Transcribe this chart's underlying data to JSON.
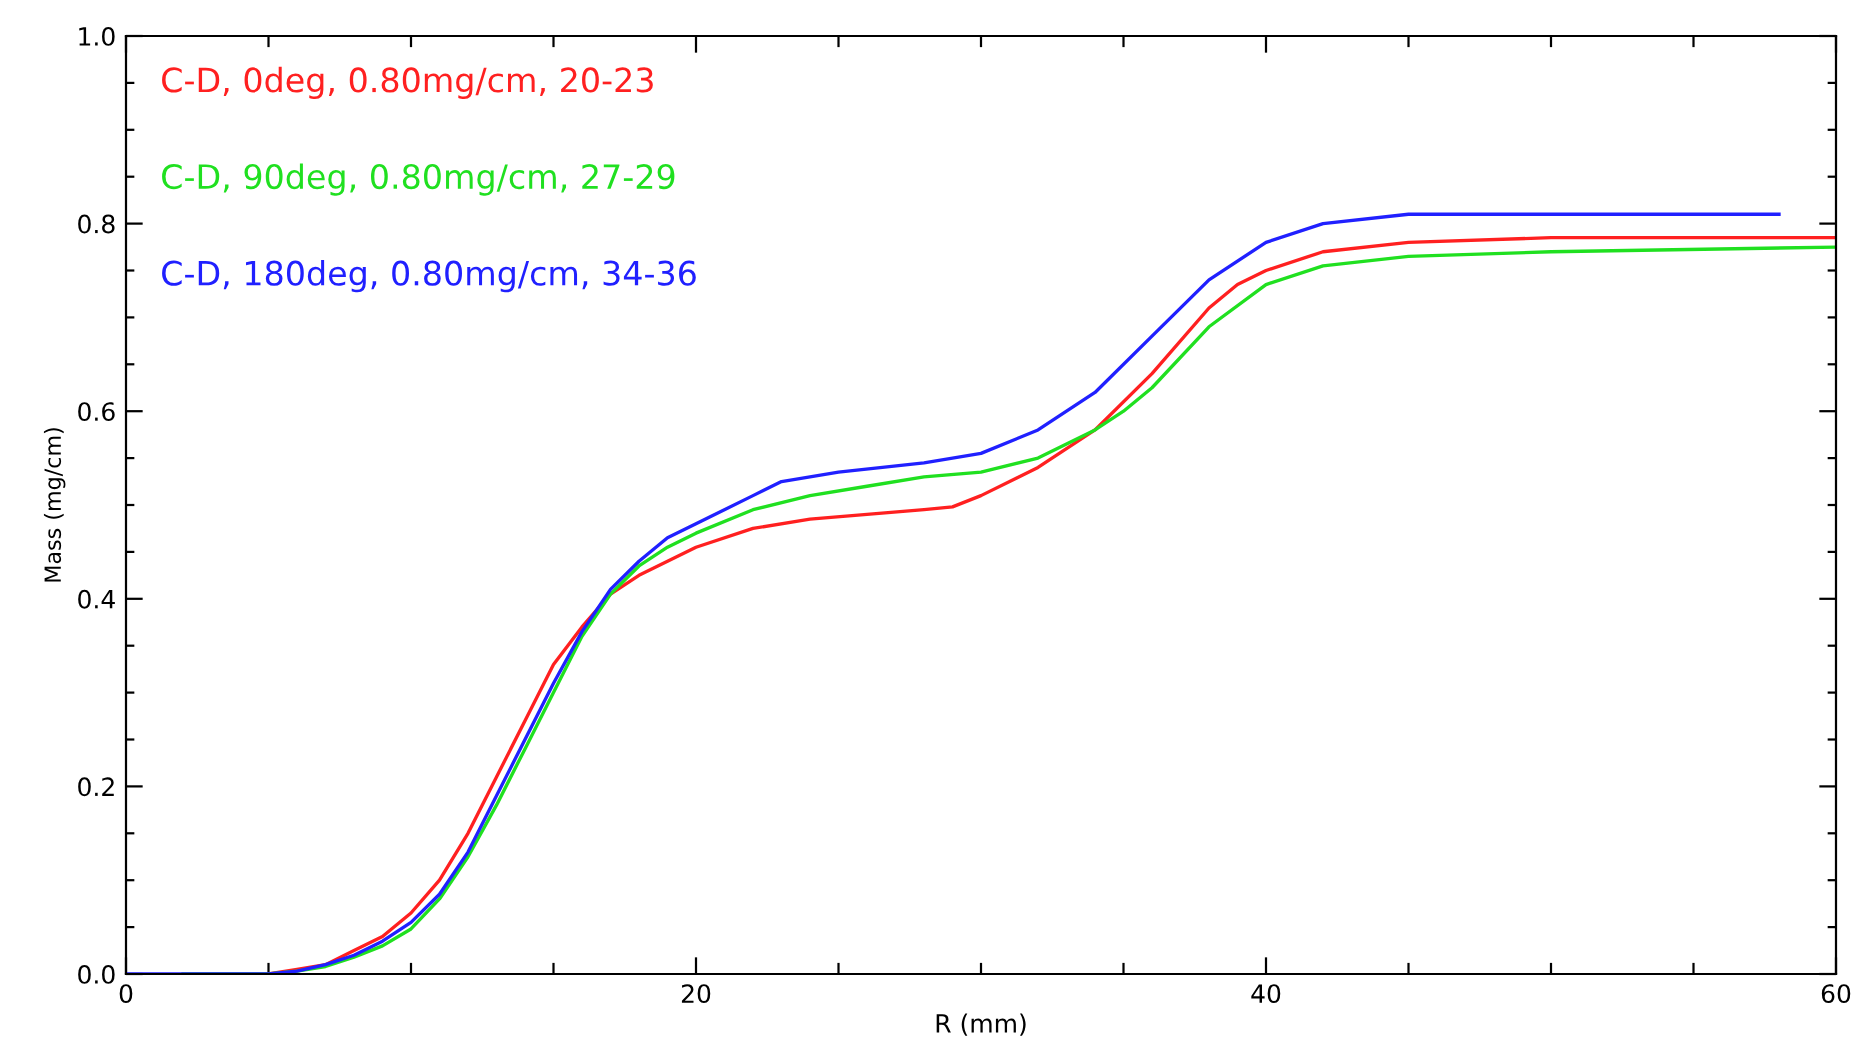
{
  "chart_data": {
    "type": "line",
    "xlabel": "R (mm)",
    "ylabel": "Mass (mg/cm)",
    "xlim": [
      0,
      60
    ],
    "ylim": [
      0,
      1.0
    ],
    "xticks": [
      0,
      {
        "value": 5,
        "label": null
      },
      {
        "value": 10,
        "label": null
      },
      {
        "value": 15,
        "label": null
      },
      20,
      {
        "value": 25,
        "label": null
      },
      {
        "value": 30,
        "label": null
      },
      {
        "value": 35,
        "label": null
      },
      40,
      {
        "value": 45,
        "label": null
      },
      {
        "value": 50,
        "label": null
      },
      {
        "value": 55,
        "label": null
      },
      60
    ],
    "yticks": [
      {
        "value": 0,
        "label": "0.0"
      },
      {
        "value": 0.05,
        "label": null
      },
      {
        "value": 0.1,
        "label": null
      },
      {
        "value": 0.15,
        "label": null
      },
      0.2,
      {
        "value": 0.25,
        "label": null
      },
      {
        "value": 0.3,
        "label": null
      },
      {
        "value": 0.35,
        "label": null
      },
      0.4,
      {
        "value": 0.45,
        "label": null
      },
      {
        "value": 0.5,
        "label": null
      },
      {
        "value": 0.55,
        "label": null
      },
      0.6,
      {
        "value": 0.65,
        "label": null
      },
      {
        "value": 0.7,
        "label": null
      },
      {
        "value": 0.75,
        "label": null
      },
      0.8,
      {
        "value": 0.85,
        "label": null
      },
      {
        "value": 0.9,
        "label": null
      },
      {
        "value": 0.95,
        "label": null
      },
      {
        "value": 1.0,
        "label": "1.0"
      }
    ],
    "grid": false,
    "legend": "top left",
    "marker": "none",
    "line_style": "solid",
    "series": [
      {
        "name": "C-D, 0deg, 0.80mg/cm, 20-23",
        "color": "#ff2020",
        "x": [
          5,
          6,
          7,
          8,
          9,
          10,
          11,
          12,
          13,
          14,
          15,
          16,
          17,
          18,
          19,
          20,
          22,
          24,
          26,
          28,
          29,
          30,
          32,
          34,
          36,
          38,
          39,
          40,
          42,
          45,
          50,
          60
        ],
        "values": [
          0,
          0.005,
          0.01,
          0.025,
          0.04,
          0.065,
          0.1,
          0.15,
          0.21,
          0.27,
          0.33,
          0.37,
          0.405,
          0.425,
          0.44,
          0.455,
          0.475,
          0.485,
          0.49,
          0.495,
          0.498,
          0.51,
          0.54,
          0.58,
          0.64,
          0.71,
          0.735,
          0.75,
          0.77,
          0.78,
          0.785,
          0.785
        ]
      },
      {
        "name": "C-D, 90deg, 0.80mg/cm, 27-29",
        "color": "#20e020",
        "x": [
          2,
          5,
          6,
          7,
          8,
          9,
          10,
          11,
          12,
          13,
          14,
          15,
          16,
          17,
          18,
          19,
          20,
          22,
          24,
          26,
          28,
          30,
          32,
          34,
          35,
          36,
          38,
          40,
          42,
          45,
          50,
          60
        ],
        "values": [
          0,
          0,
          0.003,
          0.008,
          0.018,
          0.03,
          0.048,
          0.08,
          0.125,
          0.18,
          0.24,
          0.3,
          0.36,
          0.405,
          0.435,
          0.455,
          0.47,
          0.495,
          0.51,
          0.52,
          0.53,
          0.535,
          0.55,
          0.58,
          0.6,
          0.625,
          0.69,
          0.735,
          0.755,
          0.765,
          0.77,
          0.775
        ]
      },
      {
        "name": "C-D, 180deg, 0.80mg/cm, 34-36",
        "color": "#2020ff",
        "x": [
          0,
          5,
          6,
          7,
          8,
          9,
          10,
          11,
          12,
          13,
          14,
          15,
          16,
          17,
          18,
          19,
          20,
          22,
          23,
          25,
          28,
          30,
          32,
          34,
          36,
          38,
          40,
          42,
          45,
          50,
          58
        ],
        "values": [
          0,
          0,
          0.003,
          0.01,
          0.02,
          0.035,
          0.055,
          0.085,
          0.13,
          0.19,
          0.25,
          0.31,
          0.365,
          0.41,
          0.44,
          0.465,
          0.48,
          0.51,
          0.525,
          0.535,
          0.545,
          0.555,
          0.58,
          0.62,
          0.68,
          0.74,
          0.78,
          0.8,
          0.81,
          0.81,
          0.81
        ]
      }
    ]
  }
}
